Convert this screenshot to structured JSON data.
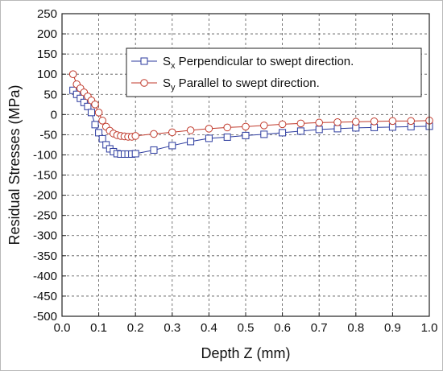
{
  "chart_data": {
    "type": "line",
    "title": "",
    "xlabel": "Depth Z (mm)",
    "ylabel": "Residual Stresses (MPa)",
    "xlim": [
      0.0,
      1.0
    ],
    "ylim": [
      -500,
      250
    ],
    "xticks": [
      "0.0",
      "0.1",
      "0.2",
      "0.3",
      "0.4",
      "0.5",
      "0.6",
      "0.7",
      "0.8",
      "0.9",
      "1.0"
    ],
    "yticks": [
      "250",
      "200",
      "150",
      "100",
      "50",
      "0",
      "-50",
      "-100",
      "-150",
      "-200",
      "-250",
      "-300",
      "-350",
      "-400",
      "-450",
      "-500"
    ],
    "grid": true,
    "legend_position": "top-right",
    "series": [
      {
        "name_main": "S",
        "name_sub": "x",
        "name_rest": " Perpendicular to swept direction.",
        "color": "#2b3a9e",
        "marker": "square",
        "x": [
          0.03,
          0.04,
          0.05,
          0.06,
          0.07,
          0.08,
          0.09,
          0.1,
          0.11,
          0.12,
          0.13,
          0.14,
          0.15,
          0.16,
          0.17,
          0.18,
          0.19,
          0.2,
          0.25,
          0.3,
          0.35,
          0.4,
          0.45,
          0.5,
          0.55,
          0.6,
          0.65,
          0.7,
          0.75,
          0.8,
          0.85,
          0.9,
          0.95,
          1.0
        ],
        "y": [
          60,
          50,
          40,
          30,
          20,
          5,
          -25,
          -45,
          -60,
          -75,
          -85,
          -92,
          -97,
          -98,
          -98,
          -98,
          -98,
          -97,
          -88,
          -77,
          -67,
          -59,
          -56,
          -52,
          -49,
          -45,
          -41,
          -37,
          -35,
          -33,
          -32,
          -31,
          -30,
          -29
        ]
      },
      {
        "name_main": "S",
        "name_sub": "y",
        "name_rest": " Parallel to swept direction.",
        "color": "#c0392b",
        "marker": "circle",
        "x": [
          0.03,
          0.04,
          0.05,
          0.06,
          0.07,
          0.08,
          0.09,
          0.1,
          0.11,
          0.12,
          0.13,
          0.14,
          0.15,
          0.16,
          0.17,
          0.18,
          0.19,
          0.2,
          0.25,
          0.3,
          0.35,
          0.4,
          0.45,
          0.5,
          0.55,
          0.6,
          0.65,
          0.7,
          0.75,
          0.8,
          0.85,
          0.9,
          0.95,
          1.0
        ],
        "y": [
          100,
          75,
          65,
          55,
          45,
          35,
          25,
          5,
          -15,
          -30,
          -40,
          -47,
          -51,
          -53,
          -54,
          -55,
          -55,
          -53,
          -48,
          -44,
          -39,
          -35,
          -32,
          -30,
          -27,
          -24,
          -22,
          -20,
          -19,
          -18,
          -17,
          -16,
          -16,
          -15
        ]
      }
    ]
  }
}
